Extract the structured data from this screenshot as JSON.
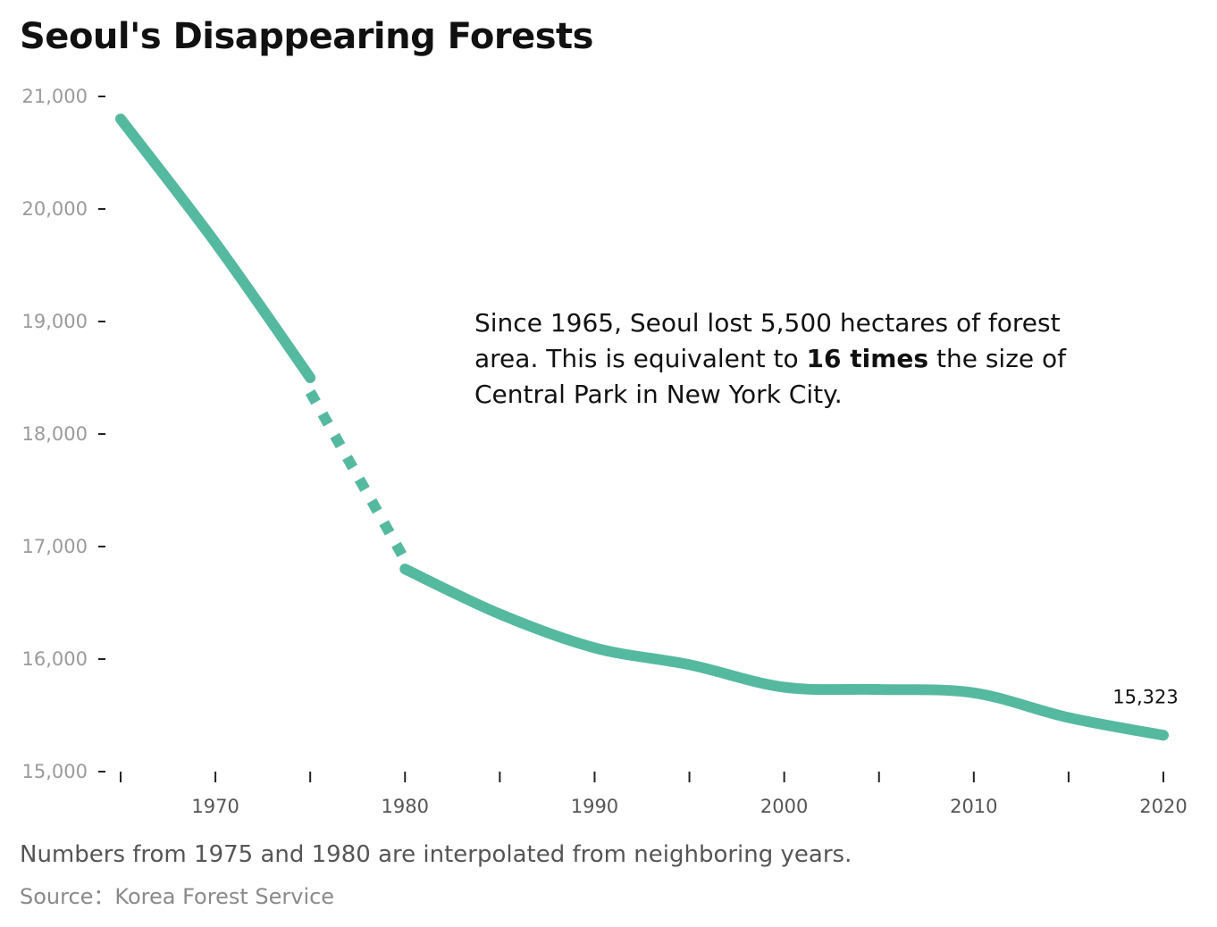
{
  "chart_data": {
    "type": "line",
    "title": "Seoul's Disappearing Forests",
    "xlabel": "",
    "ylabel": "",
    "xlim": [
      1965,
      2020
    ],
    "ylim": [
      15000,
      21000
    ],
    "y_ticks": [
      "21,000",
      "20,000",
      "19,000",
      "18,000",
      "17,000",
      "16,000",
      "15,000"
    ],
    "x_ticks": [
      "1970",
      "1980",
      "1990",
      "2000",
      "2010",
      "2020"
    ],
    "grid": false,
    "line_color": "#55b9a0",
    "series": [
      {
        "x": [
          1965,
          1970,
          1975,
          1980,
          1985,
          1990,
          1995,
          2000,
          2005,
          2010,
          2015,
          2020
        ],
        "y": [
          20800,
          19700,
          18500,
          16800,
          16400,
          16100,
          15950,
          15750,
          15730,
          15700,
          15480,
          15323
        ],
        "interpolated_segment": [
          1975,
          1980
        ]
      }
    ],
    "annotations": [
      {
        "text_before": "Since 1965, Seoul lost 5,500 hectares of forest area. This is equivalent to",
        "emphasis": "16 times",
        "text_after": "the size of Central Park in New York City."
      },
      {
        "text": "15,323",
        "x": 2020,
        "y": 15323
      }
    ]
  },
  "footer": {
    "note": "Numbers from 1975 and 1980 are interpolated from neighboring years.",
    "source": "Source：Korea Forest Service"
  }
}
